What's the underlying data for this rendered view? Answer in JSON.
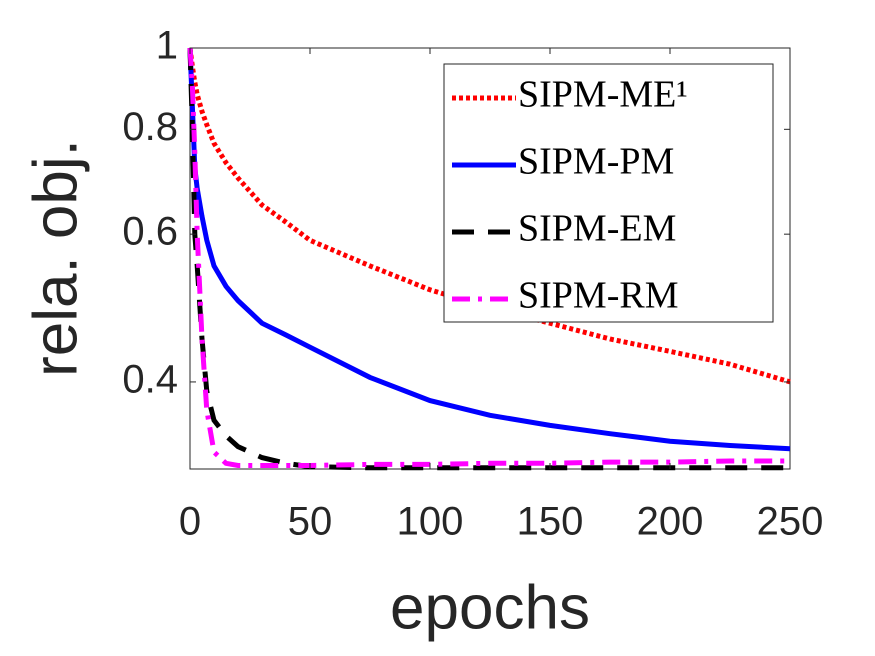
{
  "chart_data": {
    "type": "line",
    "x_label": "epochs",
    "y_label": "rela. obj.",
    "x": [
      0,
      1,
      2,
      3,
      5,
      7,
      10,
      15,
      20,
      30,
      40,
      50,
      75,
      100,
      125,
      150,
      175,
      200,
      225,
      250
    ],
    "series": [
      {
        "name": "SIPM-ME¹",
        "color": "#ff0000",
        "dash": "dotted",
        "values": [
          1,
          0.95,
          0.91,
          0.88,
          0.84,
          0.81,
          0.77,
          0.73,
          0.7,
          0.65,
          0.62,
          0.59,
          0.55,
          0.515,
          0.49,
          0.47,
          0.45,
          0.435,
          0.42,
          0.4
        ]
      },
      {
        "name": "SIPM-PM",
        "color": "#0000ff",
        "dash": "solid",
        "values": [
          1,
          0.85,
          0.72,
          0.68,
          0.63,
          0.59,
          0.55,
          0.52,
          0.5,
          0.47,
          0.455,
          0.44,
          0.405,
          0.38,
          0.365,
          0.355,
          0.347,
          0.34,
          0.336,
          0.333
        ]
      },
      {
        "name": "SIPM-EM",
        "color": "#000000",
        "dash": "dashed",
        "values": [
          1,
          0.8,
          0.6,
          0.55,
          0.45,
          0.39,
          0.36,
          0.345,
          0.335,
          0.325,
          0.32,
          0.317,
          0.316,
          0.316,
          0.316,
          0.316,
          0.316,
          0.316,
          0.316,
          0.316
        ]
      },
      {
        "name": "SIPM-RM",
        "color": "#ff00ff",
        "dash": "dashdot",
        "values": [
          1,
          0.9,
          0.75,
          0.6,
          0.45,
          0.37,
          0.33,
          0.32,
          0.318,
          0.318,
          0.318,
          0.318,
          0.319,
          0.319,
          0.32,
          0.32,
          0.321,
          0.321,
          0.322,
          0.322
        ]
      }
    ],
    "xlim": [
      0,
      250
    ],
    "xticks": [
      0,
      50,
      100,
      150,
      200,
      250
    ],
    "ylim": [
      0.315,
      1
    ],
    "yticks": [
      0.4,
      0.6,
      0.8,
      1
    ],
    "y_scale": "log",
    "legend": "upper right"
  }
}
